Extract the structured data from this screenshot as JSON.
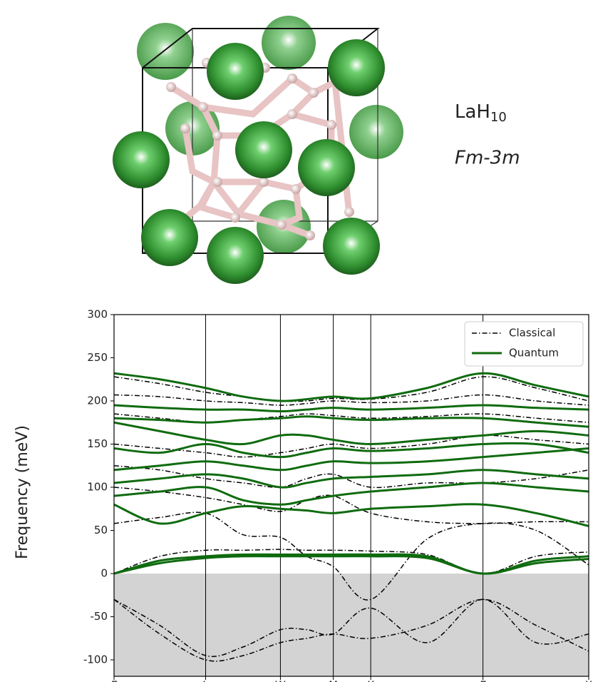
{
  "structure_panel": {
    "formula": "LaH",
    "formula_subscript": "10",
    "space_group": "Fm-3m"
  },
  "chart_data": {
    "type": "line",
    "y_label": "Frequency (meV)",
    "x": [
      0,
      0.433,
      0.866,
      1.22,
      1.573,
      1.823,
      2.073,
      2.427,
      2.96,
      3.488,
      3.99,
      4.488
    ],
    "xlim": [
      0,
      4.488
    ],
    "xticks": [
      {
        "value": 0,
        "label": "Γ"
      },
      {
        "value": 0.866,
        "label": "L"
      },
      {
        "value": 1.573,
        "label": "W"
      },
      {
        "value": 2.073,
        "label": "M"
      },
      {
        "value": 2.427,
        "label": "K"
      },
      {
        "value": 3.488,
        "label": "Γ"
      },
      {
        "value": 4.488,
        "label": "X"
      }
    ],
    "ylim": [
      -119,
      300
    ],
    "yticks": [
      -100,
      -50,
      0,
      50,
      100,
      150,
      200,
      250,
      300
    ],
    "negative_shading": "#d3d3d3",
    "legend": "upper right",
    "series": [
      {
        "name": "Classical",
        "color": "#000000",
        "linestyle": "dashdot",
        "bands": [
          [
            0,
            20,
            27,
            27,
            28,
            27,
            27,
            26,
            22,
            0,
            20,
            25
          ],
          [
            -30,
            -70,
            -100,
            -95,
            -80,
            -75,
            -70,
            -75,
            -60,
            -30,
            -60,
            -90
          ],
          [
            -30,
            -60,
            -95,
            -85,
            -65,
            -65,
            -70,
            -40,
            -80,
            -30,
            -80,
            -70
          ],
          [
            58,
            65,
            70,
            45,
            42,
            20,
            8,
            -30,
            40,
            58,
            50,
            10
          ],
          [
            100,
            95,
            88,
            80,
            72,
            85,
            90,
            70,
            60,
            58,
            60,
            60
          ],
          [
            125,
            120,
            110,
            105,
            100,
            110,
            115,
            100,
            105,
            105,
            110,
            120
          ],
          [
            150,
            145,
            140,
            135,
            140,
            145,
            150,
            145,
            150,
            160,
            155,
            150
          ],
          [
            185,
            180,
            175,
            178,
            182,
            185,
            183,
            180,
            182,
            185,
            180,
            175
          ],
          [
            207,
            205,
            200,
            198,
            195,
            197,
            200,
            198,
            200,
            207,
            200,
            195
          ],
          [
            228,
            220,
            210,
            205,
            200,
            200,
            203,
            202,
            210,
            228,
            215,
            200
          ]
        ]
      },
      {
        "name": "Quantum",
        "color": "#0f6b0f",
        "linestyle": "solid",
        "bands": [
          [
            0,
            15,
            20,
            22,
            22,
            22,
            22,
            22,
            20,
            0,
            15,
            20
          ],
          [
            0,
            12,
            18,
            20,
            20,
            20,
            20,
            20,
            18,
            0,
            12,
            17
          ],
          [
            80,
            58,
            70,
            78,
            75,
            73,
            70,
            75,
            78,
            80,
            70,
            55
          ],
          [
            90,
            95,
            100,
            85,
            80,
            85,
            90,
            95,
            100,
            105,
            100,
            95
          ],
          [
            105,
            110,
            115,
            110,
            100,
            105,
            110,
            112,
            115,
            120,
            115,
            110
          ],
          [
            120,
            125,
            130,
            125,
            120,
            125,
            130,
            128,
            130,
            135,
            140,
            145
          ],
          [
            145,
            140,
            150,
            140,
            135,
            140,
            145,
            142,
            145,
            150,
            150,
            140
          ],
          [
            175,
            165,
            155,
            150,
            160,
            160,
            155,
            150,
            155,
            160,
            165,
            160
          ],
          [
            180,
            178,
            175,
            178,
            180,
            182,
            180,
            178,
            180,
            180,
            175,
            170
          ],
          [
            195,
            192,
            190,
            190,
            188,
            190,
            192,
            190,
            192,
            195,
            192,
            190
          ],
          [
            232,
            225,
            215,
            205,
            200,
            202,
            205,
            203,
            215,
            232,
            218,
            205
          ]
        ]
      }
    ]
  }
}
